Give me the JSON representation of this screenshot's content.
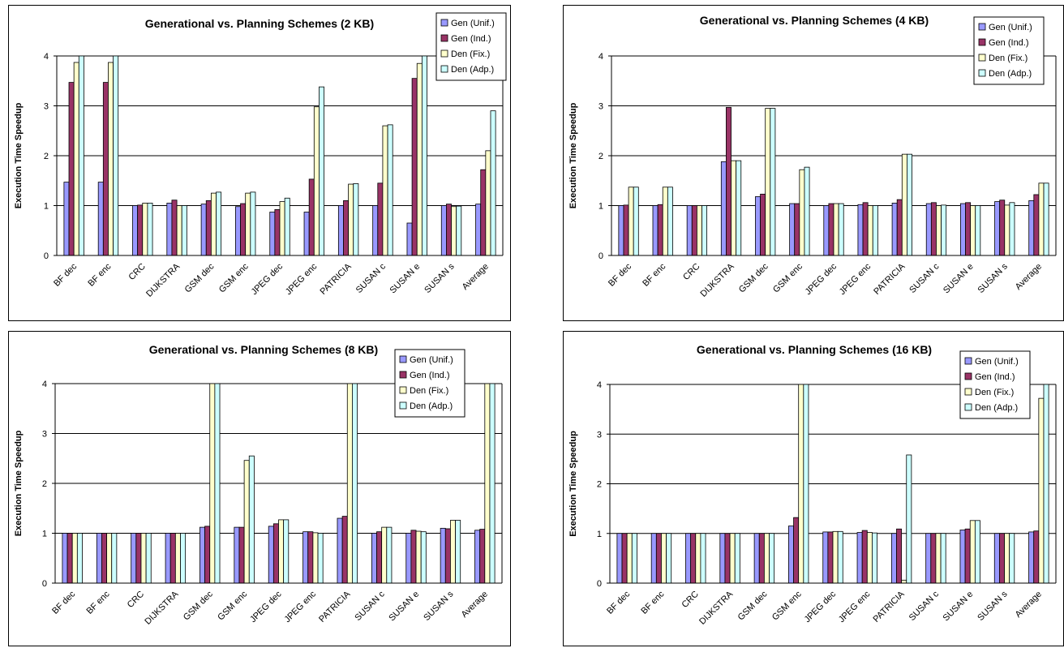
{
  "colors": {
    "series": [
      "#9999ff",
      "#993366",
      "#ffffcc",
      "#ccffff"
    ],
    "grid": "#000000",
    "plot_bg": "#ffffff"
  },
  "chart_data": [
    {
      "type": "bar",
      "title": "Generational vs. Planning Schemes (2 KB)",
      "xlabel": "",
      "ylabel": "Execution Time Speedup",
      "ylim": [
        0,
        4
      ],
      "yticks": [
        "0",
        "1",
        "2",
        "3",
        "4"
      ],
      "grid": true,
      "legend": "top-right",
      "categories": [
        "BF dec",
        "BF enc",
        "CRC",
        "DIJKSTRA",
        "GSM dec",
        "GSM enc",
        "JPEG dec",
        "JPEG enc",
        "PATRICIA",
        "SUSAN c",
        "SUSAN e",
        "SUSAN s",
        "Average"
      ],
      "series": [
        {
          "name": "Gen (Unif.)",
          "values": [
            1.47,
            1.47,
            1.0,
            1.05,
            1.03,
            0.98,
            0.87,
            0.87,
            1.0,
            1.0,
            0.65,
            1.0,
            1.03
          ]
        },
        {
          "name": "Gen (Ind.)",
          "values": [
            3.47,
            3.47,
            1.01,
            1.11,
            1.1,
            1.04,
            0.92,
            1.53,
            1.1,
            1.45,
            3.55,
            1.03,
            1.72
          ]
        },
        {
          "name": "Den (Fix.)",
          "values": [
            3.87,
            3.87,
            1.05,
            1.0,
            1.25,
            1.25,
            1.08,
            2.98,
            1.43,
            2.6,
            3.85,
            0.98,
            2.1
          ]
        },
        {
          "name": "Den (Adp.)",
          "values": [
            4.05,
            4.05,
            1.05,
            1.0,
            1.27,
            1.27,
            1.15,
            3.38,
            1.44,
            2.62,
            4.05,
            0.99,
            2.9
          ]
        }
      ]
    },
    {
      "type": "bar",
      "title": "Generational vs. Planning Schemes (4 KB)",
      "xlabel": "",
      "ylabel": "Execution Time Speedup",
      "ylim": [
        0,
        4
      ],
      "yticks": [
        "0",
        "1",
        "2",
        "3",
        "4"
      ],
      "grid": true,
      "legend": "top-right",
      "categories": [
        "BF dec",
        "BF enc",
        "CRC",
        "DIJKSTRA",
        "GSM dec",
        "GSM enc",
        "JPEG dec",
        "JPEG enc",
        "PATRICIA",
        "SUSAN c",
        "SUSAN e",
        "SUSAN s",
        "Average"
      ],
      "series": [
        {
          "name": "Gen (Unif.)",
          "values": [
            1.0,
            1.0,
            1.0,
            1.88,
            1.18,
            1.04,
            1.0,
            1.02,
            1.05,
            1.04,
            1.04,
            1.08,
            1.1
          ]
        },
        {
          "name": "Gen (Ind.)",
          "values": [
            1.01,
            1.02,
            1.0,
            2.97,
            1.23,
            1.04,
            1.04,
            1.06,
            1.12,
            1.06,
            1.06,
            1.11,
            1.22
          ]
        },
        {
          "name": "Den (Fix.)",
          "values": [
            1.37,
            1.37,
            1.0,
            1.9,
            2.95,
            1.72,
            1.04,
            1.0,
            2.03,
            1.0,
            1.0,
            1.01,
            1.45
          ]
        },
        {
          "name": "Den (Adp.)",
          "values": [
            1.37,
            1.37,
            1.0,
            1.9,
            2.95,
            1.77,
            1.04,
            1.0,
            2.03,
            1.01,
            1.0,
            1.06,
            1.45
          ]
        }
      ]
    },
    {
      "type": "bar",
      "title": "Generational vs. Planning Schemes (8 KB)",
      "xlabel": "",
      "ylabel": "Execution Time Speedup",
      "ylim": [
        0,
        4
      ],
      "yticks": [
        "0",
        "1",
        "2",
        "3",
        "4"
      ],
      "grid": true,
      "legend": "top-right",
      "categories": [
        "BF dec",
        "BF enc",
        "CRC",
        "DIJKSTRA",
        "GSM dec",
        "GSM enc",
        "JPEG dec",
        "JPEG enc",
        "PATRICIA",
        "SUSAN c",
        "SUSAN e",
        "SUSAN s",
        "Average"
      ],
      "series": [
        {
          "name": "Gen (Unif.)",
          "values": [
            1.0,
            1.0,
            1.0,
            1.0,
            1.12,
            1.12,
            1.14,
            1.03,
            1.3,
            1.0,
            1.0,
            1.1,
            1.06
          ]
        },
        {
          "name": "Gen (Ind.)",
          "values": [
            1.0,
            1.0,
            1.0,
            1.0,
            1.14,
            1.12,
            1.19,
            1.03,
            1.34,
            1.03,
            1.06,
            1.09,
            1.08
          ]
        },
        {
          "name": "Den (Fix.)",
          "values": [
            1.0,
            1.0,
            1.0,
            1.0,
            4.05,
            2.46,
            1.27,
            1.01,
            4.05,
            1.12,
            1.04,
            1.26,
            4.05
          ]
        },
        {
          "name": "Den (Adp.)",
          "values": [
            1.0,
            1.0,
            1.0,
            1.0,
            4.05,
            2.55,
            1.27,
            1.0,
            4.05,
            1.12,
            1.03,
            1.26,
            4.05
          ]
        }
      ]
    },
    {
      "type": "bar",
      "title": "Generational vs. Planning Schemes (16 KB)",
      "xlabel": "",
      "ylabel": "Execution Time Speedup",
      "ylim": [
        0,
        4
      ],
      "yticks": [
        "0",
        "1",
        "2",
        "3",
        "4"
      ],
      "grid": true,
      "legend": "top-right",
      "categories": [
        "BF dec",
        "BF enc",
        "CRC",
        "DIJKSTRA",
        "GSM dec",
        "GSM enc",
        "JPEG dec",
        "JPEG enc",
        "PATRICIA",
        "SUSAN c",
        "SUSAN e",
        "SUSAN s",
        "Average"
      ],
      "series": [
        {
          "name": "Gen (Unif.)",
          "values": [
            1.0,
            1.0,
            1.0,
            1.0,
            1.0,
            1.15,
            1.03,
            1.02,
            1.0,
            1.0,
            1.07,
            1.0,
            1.03
          ]
        },
        {
          "name": "Gen (Ind.)",
          "values": [
            1.0,
            1.0,
            1.0,
            1.0,
            1.0,
            1.32,
            1.03,
            1.06,
            1.09,
            1.0,
            1.09,
            1.0,
            1.05
          ]
        },
        {
          "name": "Den (Fix.)",
          "values": [
            1.0,
            1.0,
            1.0,
            1.0,
            1.0,
            4.05,
            1.04,
            1.02,
            0.06,
            1.0,
            1.26,
            1.0,
            3.72
          ]
        },
        {
          "name": "Den (Adp.)",
          "values": [
            1.0,
            1.0,
            1.0,
            1.0,
            1.0,
            4.05,
            1.04,
            1.01,
            2.58,
            1.0,
            1.26,
            1.0,
            4.05
          ]
        }
      ]
    }
  ]
}
